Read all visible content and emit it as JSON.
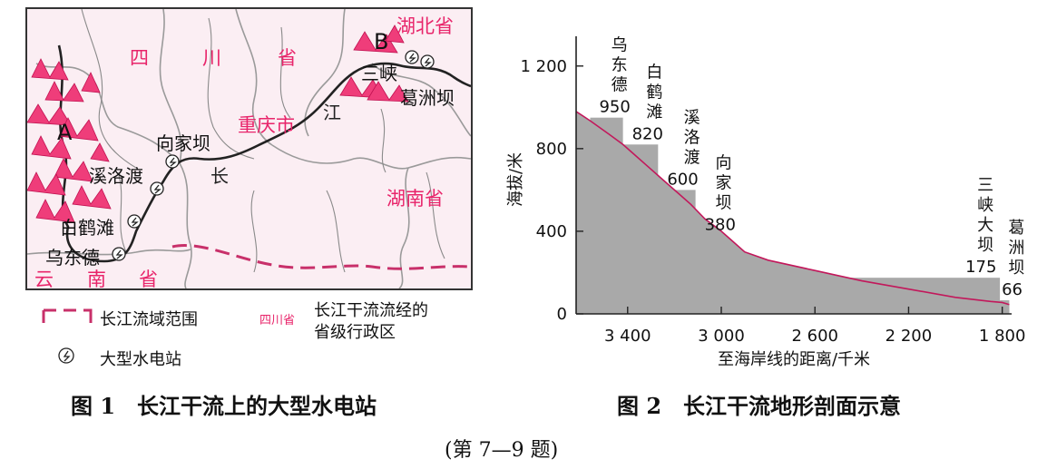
{
  "figure1": {
    "caption": "图 1　长江干流上的大型水电站",
    "letters": {
      "a": "A",
      "b": "B"
    },
    "provinces": {
      "sichuan": [
        "四",
        "川",
        "省"
      ],
      "chongqing": "重庆市",
      "hubei": "湖北省",
      "hunan": "湖南省",
      "yunnan": [
        "云",
        "南",
        "省"
      ]
    },
    "river_chars": {
      "jiang": "江",
      "chang": "长"
    },
    "stations": {
      "sanxia": "三峡",
      "gezhouba": "葛洲坝",
      "xiangjiaba": "向家坝",
      "xiluodu": "溪洛渡",
      "baihetan": "白鹤滩",
      "wudongde": "乌东德"
    },
    "legend": {
      "basin": "长江流域范围",
      "province_sample": "四川省",
      "province_desc_line1": "长江干流流经的",
      "province_desc_line2": "省级行政区",
      "station": "大型水电站"
    },
    "colors": {
      "magenta": "#e8246a",
      "mountain": "#ef3d7a",
      "basin_dash": "#c8306a"
    }
  },
  "figure2": {
    "caption": "图 2　长江干流地形剖面示意",
    "ylabel": "海拔/米",
    "xlabel": "至海岸线的距离/千米",
    "yticks": [
      "1 200",
      "800",
      "400",
      "0"
    ],
    "xticks": [
      "3 400",
      "3 000",
      "2 600",
      "2 200",
      "1 800"
    ],
    "station_labels": [
      "乌东德",
      "白鹤滩",
      "溪洛渡",
      "向家坝",
      "三峡大坝",
      "葛洲坝"
    ],
    "value_labels": [
      "950",
      "820",
      "600",
      "380",
      "175",
      "66"
    ]
  },
  "chart_data": {
    "type": "area",
    "xlabel": "至海岸线的距离/千米",
    "ylabel": "海拔/米",
    "xlim": [
      3620,
      1760
    ],
    "ylim": [
      0,
      1300
    ],
    "xticks": [
      3400,
      3000,
      2600,
      2200,
      1800
    ],
    "yticks": [
      0,
      400,
      800,
      1200
    ],
    "profile": {
      "x": [
        3620,
        3560,
        3480,
        3420,
        3380,
        3320,
        3260,
        3200,
        3130,
        3070,
        3000,
        2960,
        2900,
        2800,
        2600,
        2400,
        2200,
        2000,
        1850,
        1800,
        1770
      ],
      "y": [
        980,
        935,
        870,
        820,
        780,
        720,
        660,
        600,
        530,
        460,
        400,
        360,
        300,
        260,
        210,
        160,
        120,
        80,
        60,
        55,
        45
      ]
    },
    "reservoirs": [
      {
        "name": "乌东德",
        "value": 950,
        "x_range": [
          3560,
          3420
        ]
      },
      {
        "name": "白鹤滩",
        "value": 820,
        "x_range": [
          3420,
          3270
        ]
      },
      {
        "name": "溪洛渡",
        "value": 600,
        "x_range": [
          3270,
          3110
        ]
      },
      {
        "name": "向家坝",
        "value": 380,
        "x_range": [
          3110,
          2975
        ]
      },
      {
        "name": "三峡大坝",
        "value": 175,
        "x_range": [
          2975,
          1810
        ]
      },
      {
        "name": "葛洲坝",
        "value": 66,
        "x_range": [
          1810,
          1770
        ]
      }
    ],
    "grid": false,
    "fill_color": "#a9a9a9",
    "line_color": "#c2185b"
  },
  "footer": {
    "text": "(第 7—9 题)"
  }
}
